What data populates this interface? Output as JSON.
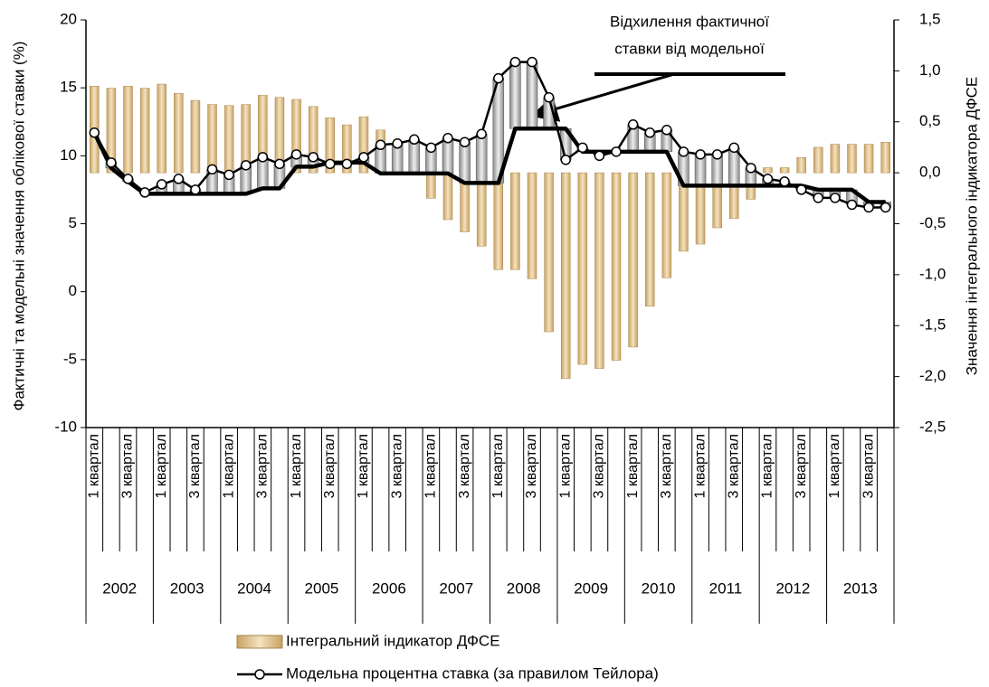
{
  "chart_data": {
    "type": "bar-line",
    "annotation": [
      "Відхилення фактичної",
      "ставки від модельної"
    ],
    "ylabel": "Фактичні та модельні значення облікової ставки (%)",
    "y2label": "Значення інтегрального індикатора ДФСЕ",
    "categories": [
      "1 квартал",
      null,
      "3 квартал",
      null,
      "1 квартал",
      null,
      "3 квартал",
      null,
      "1 квартал",
      null,
      "3 квартал",
      null,
      "1 квартал",
      null,
      "3 квартал",
      null,
      "1 квартал",
      null,
      "3 квартал",
      null,
      "1 квартал",
      null,
      "3 квартал",
      null,
      "1 квартал",
      null,
      "3 квартал",
      null,
      "1 квартал",
      null,
      "3 квартал",
      null,
      "1 квартал",
      null,
      "3 квартал",
      null,
      "1 квартал",
      null,
      "3 квартал",
      null,
      "1 квартал",
      null,
      "3 квартал",
      null,
      "1 квартал",
      null,
      "3 квартал",
      null
    ],
    "years": [
      "2002",
      "2003",
      "2004",
      "2005",
      "2006",
      "2007",
      "2008",
      "2009",
      "2010",
      "2011",
      "2012",
      "2013"
    ],
    "ylim": [
      -10,
      20
    ],
    "yticks": [
      -10,
      -5,
      0,
      5,
      10,
      15,
      20
    ],
    "y2lim": [
      -2.5,
      1.5
    ],
    "y2ticks": [
      {
        "value": -2.5,
        "label": "-2,5"
      },
      {
        "value": -2.0,
        "label": "-2,0"
      },
      {
        "value": -1.5,
        "label": "-1,5"
      },
      {
        "value": -1.0,
        "label": "-1,0"
      },
      {
        "value": -0.5,
        "label": "-0,5"
      },
      {
        "value": 0.0,
        "label": "0,0"
      },
      {
        "value": 0.5,
        "label": "0,5"
      },
      {
        "value": 1.0,
        "label": "1,0"
      },
      {
        "value": 1.5,
        "label": "1,5"
      }
    ],
    "series": [
      {
        "name": "Інтегральний індикатор ДФСЕ",
        "type": "bar",
        "axis": "y2",
        "color": "#d9bc86",
        "values": [
          0.85,
          0.83,
          0.85,
          0.83,
          0.87,
          0.78,
          0.71,
          0.67,
          0.66,
          0.67,
          0.76,
          0.74,
          0.72,
          0.65,
          0.54,
          0.47,
          0.55,
          0.42,
          0.05,
          0.02,
          -0.25,
          -0.46,
          -0.58,
          -0.72,
          -0.95,
          -0.95,
          -1.04,
          -1.56,
          -2.02,
          -1.88,
          -1.92,
          -1.84,
          -1.71,
          -1.31,
          -1.03,
          -0.77,
          -0.7,
          -0.54,
          -0.45,
          -0.26,
          0.05,
          0.05,
          0.15,
          0.25,
          0.28,
          0.28,
          0.28,
          0.3
        ]
      },
      {
        "name": "Модельна процентна ставка (за правилом Тейлора)",
        "type": "line",
        "markers": true,
        "color": "#000000",
        "values": [
          11.7,
          9.5,
          8.3,
          7.3,
          7.9,
          8.3,
          7.5,
          9.0,
          8.6,
          9.3,
          9.9,
          9.4,
          10.1,
          9.9,
          9.4,
          9.4,
          9.9,
          10.8,
          10.9,
          11.2,
          10.6,
          11.3,
          11.0,
          11.6,
          15.7,
          16.9,
          16.9,
          14.3,
          9.7,
          10.6,
          10.0,
          10.3,
          12.3,
          11.7,
          11.9,
          10.3,
          10.1,
          10.1,
          10.6,
          9.1,
          8.3,
          8.1,
          7.5,
          6.9,
          6.9,
          6.4,
          6.2,
          6.2
        ]
      },
      {
        "type": "line",
        "markers": false,
        "color": "#000000",
        "values": [
          11.7,
          9.1,
          8.1,
          7.2,
          7.2,
          7.2,
          7.2,
          7.2,
          7.2,
          7.2,
          7.6,
          7.6,
          9.2,
          9.2,
          9.5,
          9.5,
          9.5,
          8.7,
          8.7,
          8.7,
          8.7,
          8.7,
          8.0,
          8.0,
          8.0,
          12.0,
          12.0,
          12.0,
          12.0,
          10.3,
          10.3,
          10.3,
          10.3,
          10.3,
          10.3,
          7.8,
          7.8,
          7.8,
          7.8,
          7.8,
          7.8,
          7.8,
          7.8,
          7.5,
          7.5,
          7.5,
          6.6,
          6.6
        ]
      }
    ]
  }
}
